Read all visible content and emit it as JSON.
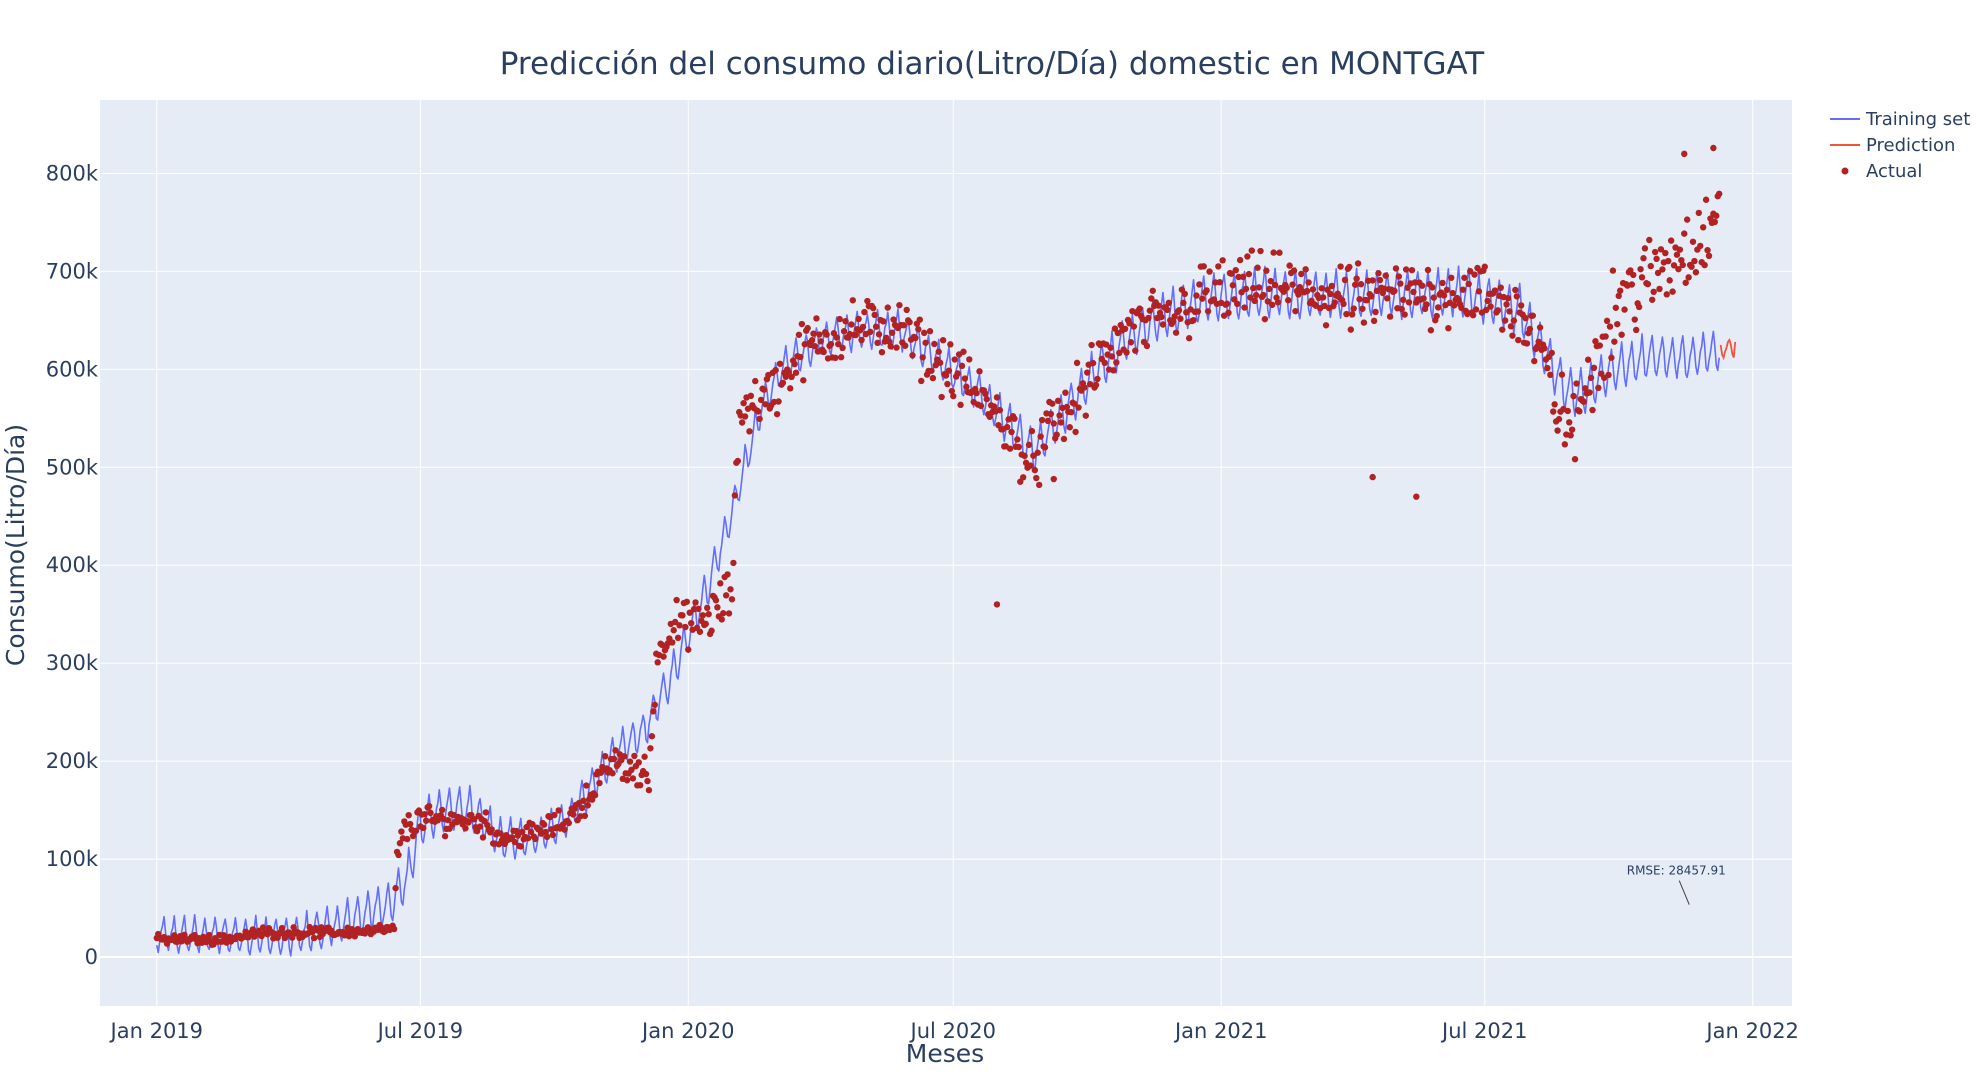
{
  "chart_data": {
    "type": "line",
    "title": "Predicción del consumo diario(Litro/Día) domestic en MONTGAT",
    "xlabel": "Meses",
    "ylabel": "Consumo(Litro/Día)",
    "xlim": [
      "2018-11-23",
      "2022-01-28"
    ],
    "ylim": [
      -50000,
      875000
    ],
    "x_ticks": [
      {
        "date": "2019-01-01",
        "label": "Jan 2019"
      },
      {
        "date": "2019-07-01",
        "label": "Jul 2019"
      },
      {
        "date": "2020-01-01",
        "label": "Jan 2020"
      },
      {
        "date": "2020-07-01",
        "label": "Jul 2020"
      },
      {
        "date": "2021-01-01",
        "label": "Jan 2021"
      },
      {
        "date": "2021-07-01",
        "label": "Jul 2021"
      },
      {
        "date": "2022-01-01",
        "label": "Jan 2022"
      }
    ],
    "y_ticks": [
      {
        "value": 0,
        "label": "0"
      },
      {
        "value": 100000,
        "label": "100k"
      },
      {
        "value": 200000,
        "label": "200k"
      },
      {
        "value": 300000,
        "label": "300k"
      },
      {
        "value": 400000,
        "label": "400k"
      },
      {
        "value": 500000,
        "label": "500k"
      },
      {
        "value": 600000,
        "label": "600k"
      },
      {
        "value": 700000,
        "label": "700k"
      },
      {
        "value": 800000,
        "label": "800k"
      }
    ],
    "grid": true,
    "legend_position": "top-right",
    "series": [
      {
        "name": "Training set",
        "mode": "lines",
        "color": "#636efa",
        "note": "daily line with weekly oscillation; trend points below (dates, values)",
        "trend": [
          [
            "2019-01-01",
            22000
          ],
          [
            "2019-02-15",
            22000
          ],
          [
            "2019-04-01",
            20000
          ],
          [
            "2019-05-01",
            30000
          ],
          [
            "2019-06-10",
            55000
          ],
          [
            "2019-06-22",
            80000
          ],
          [
            "2019-07-01",
            135000
          ],
          [
            "2019-07-15",
            150000
          ],
          [
            "2019-08-05",
            150000
          ],
          [
            "2019-08-25",
            120000
          ],
          [
            "2019-09-15",
            120000
          ],
          [
            "2019-10-10",
            140000
          ],
          [
            "2019-10-25",
            170000
          ],
          [
            "2019-11-10",
            205000
          ],
          [
            "2019-12-01",
            230000
          ],
          [
            "2019-12-20",
            285000
          ],
          [
            "2020-01-01",
            330000
          ],
          [
            "2020-01-15",
            380000
          ],
          [
            "2020-02-01",
            460000
          ],
          [
            "2020-02-20",
            560000
          ],
          [
            "2020-03-05",
            600000
          ],
          [
            "2020-04-01",
            630000
          ],
          [
            "2020-05-01",
            640000
          ],
          [
            "2020-05-25",
            640000
          ],
          [
            "2020-06-20",
            610000
          ],
          [
            "2020-07-20",
            575000
          ],
          [
            "2020-08-10",
            540000
          ],
          [
            "2020-08-25",
            515000
          ],
          [
            "2020-09-10",
            545000
          ],
          [
            "2020-10-05",
            595000
          ],
          [
            "2020-11-01",
            635000
          ],
          [
            "2020-12-01",
            660000
          ],
          [
            "2020-12-20",
            672000
          ],
          [
            "2021-02-01",
            678000
          ],
          [
            "2021-04-01",
            675000
          ],
          [
            "2021-06-15",
            678000
          ],
          [
            "2021-07-25",
            660000
          ],
          [
            "2021-08-10",
            620000
          ],
          [
            "2021-08-25",
            580000
          ],
          [
            "2021-09-05",
            575000
          ],
          [
            "2021-09-25",
            598000
          ],
          [
            "2021-10-20",
            612000
          ],
          [
            "2021-11-20",
            612000
          ],
          [
            "2021-12-09",
            620000
          ]
        ],
        "oscillation_amplitude": [
          [
            "2019-01-01",
            18000
          ],
          [
            "2019-06-15",
            22000
          ],
          [
            "2019-07-01",
            25000
          ],
          [
            "2019-10-01",
            18000
          ],
          [
            "2019-12-15",
            20000
          ],
          [
            "2020-03-01",
            18000
          ],
          [
            "2020-07-01",
            20000
          ],
          [
            "2021-01-01",
            25000
          ],
          [
            "2021-08-01",
            25000
          ],
          [
            "2021-12-09",
            22000
          ]
        ]
      },
      {
        "name": "Prediction",
        "mode": "lines",
        "color": "#ef553b",
        "x": [
          "2021-12-10",
          "2021-12-11",
          "2021-12-12",
          "2021-12-13",
          "2021-12-14",
          "2021-12-15",
          "2021-12-16",
          "2021-12-17",
          "2021-12-18",
          "2021-12-19",
          "2021-12-20"
        ],
        "y": [
          625000,
          615000,
          612000,
          618000,
          622000,
          628000,
          630000,
          625000,
          616000,
          612000,
          628000
        ]
      },
      {
        "name": "Actual",
        "mode": "markers",
        "color": "#b22222",
        "note": "daily markers; trend points below (dates, values) plus outliers",
        "trend": [
          [
            "2019-01-01",
            18000
          ],
          [
            "2019-02-15",
            18000
          ],
          [
            "2019-03-15",
            25000
          ],
          [
            "2019-05-01",
            25000
          ],
          [
            "2019-06-10",
            28000
          ],
          [
            "2019-06-13",
            28000
          ],
          [
            "2019-06-15",
            105000
          ],
          [
            "2019-06-20",
            130000
          ],
          [
            "2019-07-01",
            140000
          ],
          [
            "2019-08-10",
            140000
          ],
          [
            "2019-08-25",
            122000
          ],
          [
            "2019-09-15",
            125000
          ],
          [
            "2019-10-10",
            140000
          ],
          [
            "2019-10-25",
            165000
          ],
          [
            "2019-11-10",
            200000
          ],
          [
            "2019-11-25",
            190000
          ],
          [
            "2019-12-05",
            185000
          ],
          [
            "2019-12-10",
            300000
          ],
          [
            "2019-12-20",
            340000
          ],
          [
            "2020-01-10",
            340000
          ],
          [
            "2020-01-31",
            370000
          ],
          [
            "2020-02-05",
            560000
          ],
          [
            "2020-02-20",
            570000
          ],
          [
            "2020-03-01",
            580000
          ],
          [
            "2020-03-20",
            620000
          ],
          [
            "2020-04-15",
            640000
          ],
          [
            "2020-05-20",
            645000
          ],
          [
            "2020-06-15",
            615000
          ],
          [
            "2020-07-10",
            585000
          ],
          [
            "2020-08-05",
            545000
          ],
          [
            "2020-08-25",
            500000
          ],
          [
            "2020-09-05",
            540000
          ],
          [
            "2020-09-20",
            560000
          ],
          [
            "2020-10-10",
            605000
          ],
          [
            "2020-11-01",
            640000
          ],
          [
            "2020-12-01",
            655000
          ],
          [
            "2020-12-20",
            675000
          ],
          [
            "2021-02-01",
            685000
          ],
          [
            "2021-04-01",
            670000
          ],
          [
            "2021-06-15",
            680000
          ],
          [
            "2021-07-25",
            660000
          ],
          [
            "2021-08-10",
            610000
          ],
          [
            "2021-08-25",
            545000
          ],
          [
            "2021-09-01",
            540000
          ],
          [
            "2021-09-10",
            590000
          ],
          [
            "2021-10-01",
            670000
          ],
          [
            "2021-10-30",
            700000
          ],
          [
            "2021-11-20",
            730000
          ],
          [
            "2021-12-09",
            745000
          ]
        ],
        "scatter_spread": [
          [
            "2019-01-01",
            5000
          ],
          [
            "2019-06-14",
            6000
          ],
          [
            "2019-06-20",
            15000
          ],
          [
            "2019-10-01",
            12000
          ],
          [
            "2019-12-01",
            20000
          ],
          [
            "2020-02-10",
            30000
          ],
          [
            "2020-07-01",
            30000
          ],
          [
            "2020-12-01",
            35000
          ],
          [
            "2021-07-01",
            35000
          ],
          [
            "2021-10-01",
            45000
          ],
          [
            "2021-12-09",
            45000
          ]
        ],
        "outliers": [
          [
            "2020-07-31",
            360000
          ],
          [
            "2021-04-15",
            490000
          ],
          [
            "2021-05-15",
            470000
          ],
          [
            "2020-09-08",
            488000
          ],
          [
            "2021-11-15",
            820000
          ],
          [
            "2021-12-05",
            826000
          ]
        ]
      }
    ],
    "annotations": [
      {
        "text": "RMSE: 28457.91",
        "x": "2021-11-15",
        "y": 78000
      }
    ]
  }
}
